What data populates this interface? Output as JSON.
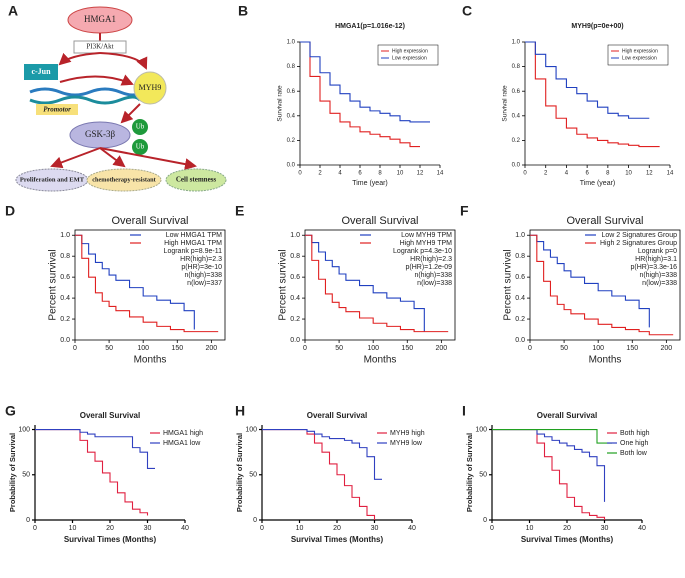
{
  "diagram": {
    "label": "A",
    "nodes": [
      "HMGA1",
      "PI3K/Akt",
      "c-Jun",
      "Promotor",
      "MYH9",
      "GSK-3β",
      "Ub",
      "Ub",
      "Proliferation and EMT",
      "chemotherapy-resistant",
      "Cell stemness"
    ]
  },
  "chart_data": [
    {
      "label": "B",
      "type": "line",
      "title": "HMGA1(p=1.016e-12)",
      "xlabel": "Time (year)",
      "ylabel": "Survival rate",
      "x": [
        0,
        1,
        2,
        3,
        4,
        5,
        6,
        7,
        8,
        9,
        10,
        11,
        12,
        13
      ],
      "series": [
        {
          "name": "High expression",
          "color": "#e02020",
          "values": [
            1,
            0.72,
            0.52,
            0.42,
            0.35,
            0.31,
            0.27,
            0.25,
            0.23,
            0.21,
            0.18,
            0.15,
            0.15,
            null
          ]
        },
        {
          "name": "Low expression",
          "color": "#2040c0",
          "values": [
            1,
            0.88,
            0.75,
            0.65,
            0.58,
            0.52,
            0.47,
            0.44,
            0.42,
            0.4,
            0.36,
            0.35,
            0.35,
            0.35
          ]
        }
      ],
      "xlim": [
        0,
        14
      ],
      "ylim": [
        0,
        1
      ],
      "xticks": [
        0,
        2,
        4,
        6,
        8,
        10,
        12,
        14
      ],
      "yticks": [
        {
          "value": 0,
          "label": "0.0"
        },
        {
          "value": 0.2,
          "label": "0.2"
        },
        {
          "value": 0.4,
          "label": "0.4"
        },
        {
          "value": 0.6,
          "label": "0.6"
        },
        {
          "value": 0.8,
          "label": "0.8"
        },
        {
          "value": 1,
          "label": "1.0"
        }
      ],
      "legend": "upper right"
    },
    {
      "label": "C",
      "type": "line",
      "title": "MYH9(p=0e+00)",
      "xlabel": "Time (year)",
      "ylabel": "Survival rate",
      "x": [
        0,
        1,
        2,
        3,
        4,
        5,
        6,
        7,
        8,
        9,
        10,
        11,
        12,
        13
      ],
      "series": [
        {
          "name": "High expression",
          "color": "#e02020",
          "values": [
            1,
            0.7,
            0.48,
            0.38,
            0.3,
            0.25,
            0.22,
            0.2,
            0.18,
            0.17,
            0.16,
            0.15,
            0.15,
            0.15
          ]
        },
        {
          "name": "Low expression",
          "color": "#2040c0",
          "values": [
            1,
            0.9,
            0.8,
            0.7,
            0.63,
            0.58,
            0.52,
            0.47,
            0.42,
            0.4,
            0.38,
            0.38,
            0.38,
            null
          ]
        }
      ],
      "xlim": [
        0,
        14
      ],
      "ylim": [
        0,
        1
      ],
      "xticks": [
        0,
        2,
        4,
        6,
        8,
        10,
        12,
        14
      ],
      "yticks": [
        {
          "value": 0,
          "label": "0.0"
        },
        {
          "value": 0.2,
          "label": "0.2"
        },
        {
          "value": 0.4,
          "label": "0.4"
        },
        {
          "value": 0.6,
          "label": "0.6"
        },
        {
          "value": 0.8,
          "label": "0.8"
        },
        {
          "value": 1,
          "label": "1.0"
        }
      ],
      "legend": "upper right"
    },
    {
      "label": "D",
      "type": "line",
      "title": "Overall Survival",
      "xlabel": "Months",
      "ylabel": "Percent survival",
      "x": [
        0,
        10,
        20,
        30,
        40,
        50,
        60,
        80,
        100,
        120,
        140,
        160,
        175,
        200,
        210
      ],
      "series": [
        {
          "name": "Low HMGA1 TPM",
          "color": "#2040c0",
          "values": [
            1,
            0.92,
            0.82,
            0.74,
            0.68,
            0.62,
            0.57,
            0.5,
            0.42,
            0.38,
            0.35,
            0.28,
            0.1,
            null,
            null
          ]
        },
        {
          "name": "High HMGA1 TPM",
          "color": "#e02020",
          "values": [
            1,
            0.78,
            0.6,
            0.45,
            0.37,
            0.32,
            0.28,
            0.22,
            0.17,
            0.13,
            0.1,
            0.08,
            0.08,
            0.08,
            0.08
          ]
        }
      ],
      "annotations": [
        "Logrank p=8.9e-11",
        "HR(high)=2.3",
        "p(HR)=3e-10",
        "n(high)=338",
        "n(low)=337"
      ],
      "xlim": [
        0,
        220
      ],
      "ylim": [
        0,
        1.05
      ],
      "xticks": [
        0,
        50,
        100,
        150,
        200
      ],
      "yticks": [
        {
          "value": 0,
          "label": "0.0"
        },
        {
          "value": 0.2,
          "label": "0.2"
        },
        {
          "value": 0.4,
          "label": "0.4"
        },
        {
          "value": 0.6,
          "label": "0.6"
        },
        {
          "value": 0.8,
          "label": "0.8"
        },
        {
          "value": 1,
          "label": "1.0"
        }
      ],
      "legend": "upper right"
    },
    {
      "label": "E",
      "type": "line",
      "title": "Overall Survival",
      "xlabel": "Months",
      "ylabel": "Percent survival",
      "x": [
        0,
        10,
        20,
        30,
        40,
        50,
        60,
        80,
        100,
        120,
        140,
        160,
        175,
        200,
        210
      ],
      "series": [
        {
          "name": "Low MYH9 TPM",
          "color": "#2040c0",
          "values": [
            1,
            0.93,
            0.84,
            0.76,
            0.7,
            0.63,
            0.57,
            0.52,
            0.45,
            0.4,
            0.37,
            0.3,
            0.08,
            null,
            null
          ]
        },
        {
          "name": "High MYH9 TPM",
          "color": "#e02020",
          "values": [
            1,
            0.76,
            0.58,
            0.44,
            0.36,
            0.31,
            0.27,
            0.21,
            0.16,
            0.13,
            0.1,
            0.08,
            0.08,
            0.08,
            0.08
          ]
        }
      ],
      "annotations": [
        "Logrank p=4.3e-10",
        "HR(high)=2.3",
        "p(HR)=1.2e-09",
        "n(high)=338",
        "n(low)=338"
      ],
      "xlim": [
        0,
        220
      ],
      "ylim": [
        0,
        1.05
      ],
      "xticks": [
        0,
        50,
        100,
        150,
        200
      ],
      "yticks": [
        {
          "value": 0,
          "label": "0.0"
        },
        {
          "value": 0.2,
          "label": "0.2"
        },
        {
          "value": 0.4,
          "label": "0.4"
        },
        {
          "value": 0.6,
          "label": "0.6"
        },
        {
          "value": 0.8,
          "label": "0.8"
        },
        {
          "value": 1,
          "label": "1.0"
        }
      ],
      "legend": "upper right"
    },
    {
      "label": "F",
      "type": "line",
      "title": "Overall Survival",
      "xlabel": "Months",
      "ylabel": "Percent survival",
      "x": [
        0,
        10,
        20,
        30,
        40,
        50,
        60,
        80,
        100,
        120,
        140,
        160,
        175,
        200,
        210
      ],
      "series": [
        {
          "name": "Low 2 Signatures Group",
          "color": "#2040c0",
          "values": [
            1,
            0.94,
            0.86,
            0.79,
            0.73,
            0.66,
            0.6,
            0.54,
            0.47,
            0.42,
            0.38,
            0.3,
            0.12,
            null,
            null
          ]
        },
        {
          "name": "High 2 Signatures Group",
          "color": "#e02020",
          "values": [
            1,
            0.75,
            0.56,
            0.42,
            0.34,
            0.29,
            0.25,
            0.2,
            0.15,
            0.12,
            0.1,
            0.08,
            0.05,
            0.05,
            0.05
          ]
        }
      ],
      "annotations": [
        "Logrank p=0",
        "HR(high)=3.1",
        "p(HR)=3.3e-16",
        "n(high)=338",
        "n(low)=338"
      ],
      "xlim": [
        0,
        220
      ],
      "ylim": [
        0,
        1.05
      ],
      "xticks": [
        0,
        50,
        100,
        150,
        200
      ],
      "yticks": [
        {
          "value": 0,
          "label": "0.0"
        },
        {
          "value": 0.2,
          "label": "0.2"
        },
        {
          "value": 0.4,
          "label": "0.4"
        },
        {
          "value": 0.6,
          "label": "0.6"
        },
        {
          "value": 0.8,
          "label": "0.8"
        },
        {
          "value": 1,
          "label": "1.0"
        }
      ],
      "legend": "upper right"
    },
    {
      "label": "G",
      "type": "line",
      "title": "Overall Survival",
      "xlabel": "Survival Times (Months)",
      "ylabel": "Probability of Survival",
      "x": [
        0,
        10,
        12,
        14,
        16,
        18,
        20,
        22,
        24,
        26,
        28,
        30,
        32
      ],
      "series": [
        {
          "name": "HMGA1 high",
          "color": "#e02040",
          "values": [
            100,
            100,
            88,
            75,
            65,
            52,
            42,
            30,
            20,
            12,
            8,
            5,
            null
          ]
        },
        {
          "name": "HMGA1 low",
          "color": "#3040c0",
          "values": [
            100,
            100,
            97,
            95,
            92,
            92,
            92,
            92,
            92,
            80,
            75,
            57,
            57
          ]
        }
      ],
      "xlim": [
        0,
        40
      ],
      "ylim": [
        0,
        105
      ],
      "xticks": [
        0,
        10,
        20,
        30,
        40
      ],
      "yticks": [
        0,
        50,
        100
      ],
      "legend": "upper right"
    },
    {
      "label": "H",
      "type": "line",
      "title": "Overall Survival",
      "xlabel": "Survival Times (Months)",
      "ylabel": "Probability of Survival",
      "x": [
        0,
        10,
        12,
        14,
        16,
        18,
        20,
        22,
        24,
        26,
        28,
        30,
        32
      ],
      "series": [
        {
          "name": "MYH9 high",
          "color": "#e02040",
          "values": [
            100,
            100,
            95,
            85,
            75,
            62,
            50,
            38,
            25,
            15,
            5,
            0,
            null
          ]
        },
        {
          "name": "MYH9 low",
          "color": "#3040c0",
          "values": [
            100,
            100,
            98,
            95,
            92,
            90,
            90,
            88,
            85,
            80,
            70,
            45,
            45
          ]
        }
      ],
      "xlim": [
        0,
        40
      ],
      "ylim": [
        0,
        105
      ],
      "xticks": [
        0,
        10,
        20,
        30,
        40
      ],
      "yticks": [
        0,
        50,
        100
      ],
      "legend": "upper right"
    },
    {
      "label": "I",
      "type": "line",
      "title": "Overall Survival",
      "xlabel": "Survival Times (Months)",
      "ylabel": "Probability of Survival",
      "x": [
        0,
        10,
        12,
        14,
        16,
        18,
        20,
        22,
        24,
        26,
        28,
        30,
        32
      ],
      "series": [
        {
          "name": "Both high",
          "color": "#e02040",
          "values": [
            100,
            100,
            85,
            70,
            55,
            40,
            25,
            15,
            8,
            5,
            3,
            0,
            null
          ]
        },
        {
          "name": "One high",
          "color": "#3040c0",
          "values": [
            100,
            100,
            95,
            92,
            88,
            85,
            82,
            78,
            75,
            70,
            60,
            20,
            null
          ]
        },
        {
          "name": "Both low",
          "color": "#20a020",
          "values": [
            100,
            100,
            100,
            100,
            100,
            100,
            100,
            100,
            100,
            100,
            85,
            85,
            85
          ]
        }
      ],
      "xlim": [
        0,
        40
      ],
      "ylim": [
        0,
        105
      ],
      "xticks": [
        0,
        10,
        20,
        30,
        40
      ],
      "yticks": [
        0,
        50,
        100
      ],
      "legend": "upper right"
    }
  ]
}
